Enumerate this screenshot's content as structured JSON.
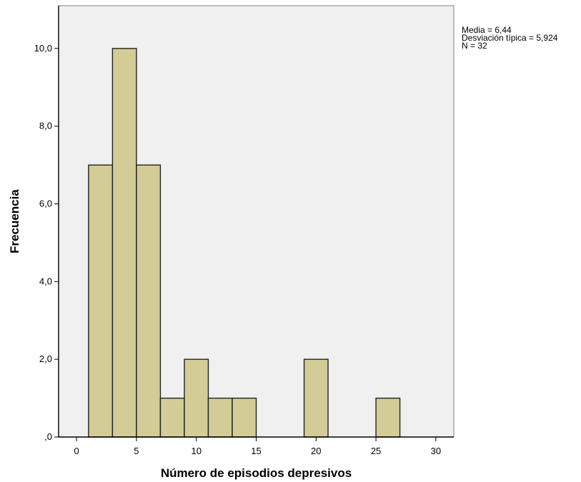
{
  "chart_data": {
    "type": "bar",
    "histogram": true,
    "bins": [
      {
        "x0": 1,
        "x1": 3,
        "count": 7
      },
      {
        "x0": 3,
        "x1": 5,
        "count": 10
      },
      {
        "x0": 5,
        "x1": 7,
        "count": 7
      },
      {
        "x0": 7,
        "x1": 9,
        "count": 1
      },
      {
        "x0": 9,
        "x1": 11,
        "count": 2
      },
      {
        "x0": 11,
        "x1": 13,
        "count": 1
      },
      {
        "x0": 13,
        "x1": 15,
        "count": 1
      },
      {
        "x0": 19,
        "x1": 21,
        "count": 2
      },
      {
        "x0": 25,
        "x1": 27,
        "count": 1
      }
    ],
    "xlabel": "Número de episodios  depresivos",
    "ylabel": "Frecuencia",
    "xlim": [
      -1.5,
      31.5
    ],
    "ylim": [
      0,
      11.1
    ],
    "x_ticks": [
      0,
      5,
      10,
      15,
      20,
      25,
      30
    ],
    "x_tick_labels": [
      "0",
      "5",
      "10",
      "15",
      "20",
      "25",
      "30"
    ],
    "y_ticks": [
      0,
      2,
      4,
      6,
      8,
      10
    ],
    "y_tick_labels": [
      ",0",
      "2,0",
      "4,0",
      "6,0",
      "8,0",
      "10,0"
    ],
    "grid": false,
    "colors": {
      "bar_fill": "#d3cc96",
      "bar_stroke": "#222222",
      "plot_background": "#f0f0f0"
    }
  },
  "stats": {
    "mean": "Media = 6,44",
    "std": "Desviación típica = 5,924",
    "n": "N = 32"
  }
}
